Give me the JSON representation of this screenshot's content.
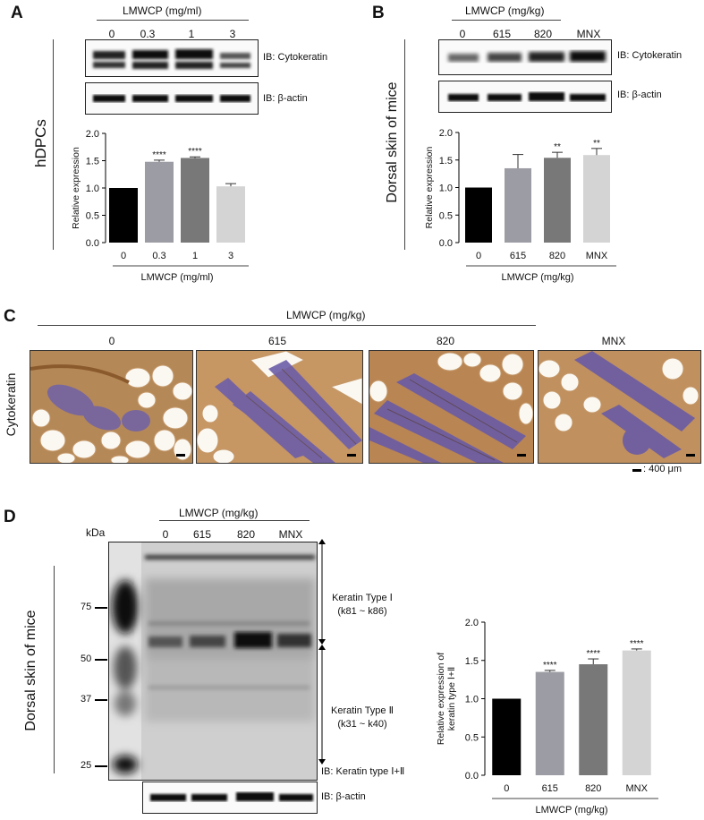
{
  "panels": {
    "A": "A",
    "B": "B",
    "C": "C",
    "D": "D"
  },
  "A": {
    "header": "LMWCP (mg/ml)",
    "lanes": [
      "0",
      "0.3",
      "1",
      "3"
    ],
    "blot1": "IB: Cytokeratin",
    "blot2": "IB: β-actin",
    "side": "hDPCs",
    "xlabel": "LMWCP (mg/ml)"
  },
  "B": {
    "header": "LMWCP (mg/kg)",
    "lanes": [
      "0",
      "615",
      "820",
      "MNX"
    ],
    "blot1": "IB: Cytokeratin",
    "blot2": "IB: β-actin",
    "side": "Dorsal skin of mice",
    "xlabel": "LMWCP (mg/kg)"
  },
  "C": {
    "header": "LMWCP (mg/kg)",
    "lanes": [
      "0",
      "615",
      "820",
      "MNX"
    ],
    "side": "Cytokeratin",
    "scale": ": 400 μm"
  },
  "D": {
    "header": "LMWCP (mg/kg)",
    "kda": "kDa",
    "lanes": [
      "0",
      "615",
      "820",
      "MNX"
    ],
    "markers": [
      "75",
      "50",
      "37",
      "25"
    ],
    "side": "Dorsal skin of mice",
    "type1": "Keratin Type Ⅰ",
    "type1range": "(k81 ~ k86)",
    "type2": "Keratin Type Ⅱ",
    "type2range": "(k31 ~ k40)",
    "ib1": "IB: Keratin type Ⅰ+Ⅱ",
    "ib2": "IB: β-actin",
    "xlabel": "LMWCP (mg/kg)"
  },
  "chart_data": [
    {
      "type": "bar",
      "id": "A",
      "categories": [
        "0",
        "0.3",
        "1",
        "3"
      ],
      "values": [
        1.0,
        1.48,
        1.55,
        1.03
      ],
      "errors": [
        0,
        0.03,
        0.02,
        0.05
      ],
      "significance": [
        "",
        "****",
        "****",
        ""
      ],
      "ylabel": "Relative expression",
      "xlabel": "LMWCP (mg/ml)",
      "ylim": [
        0,
        2.0
      ],
      "yticks": [
        "0.0",
        "0.5",
        "1.0",
        "1.5",
        "2.0"
      ],
      "colors": [
        "#000000",
        "#9c9ca4",
        "#787878",
        "#d4d4d4"
      ]
    },
    {
      "type": "bar",
      "id": "B",
      "categories": [
        "0",
        "615",
        "820",
        "MNX"
      ],
      "values": [
        1.0,
        1.35,
        1.54,
        1.59
      ],
      "errors": [
        0,
        0.25,
        0.1,
        0.12
      ],
      "significance": [
        "",
        "",
        "**",
        "**"
      ],
      "ylabel": "Relative expression",
      "xlabel": "LMWCP (mg/kg)",
      "ylim": [
        0,
        2.0
      ],
      "yticks": [
        "0.0",
        "0.5",
        "1.0",
        "1.5",
        "2.0"
      ],
      "colors": [
        "#000000",
        "#9c9ca4",
        "#787878",
        "#d4d4d4"
      ]
    },
    {
      "type": "bar",
      "id": "D",
      "categories": [
        "0",
        "615",
        "820",
        "MNX"
      ],
      "values": [
        1.0,
        1.35,
        1.45,
        1.63
      ],
      "errors": [
        0,
        0.02,
        0.07,
        0.02
      ],
      "significance": [
        "",
        "****",
        "****",
        "****"
      ],
      "ylabel": "Relative expression of keratin type Ⅰ+Ⅱ",
      "xlabel": "LMWCP (mg/kg)",
      "ylim": [
        0,
        2.0
      ],
      "yticks": [
        "0.0",
        "0.5",
        "1.0",
        "1.5",
        "2.0"
      ],
      "colors": [
        "#000000",
        "#9c9ca4",
        "#787878",
        "#d4d4d4"
      ]
    }
  ]
}
